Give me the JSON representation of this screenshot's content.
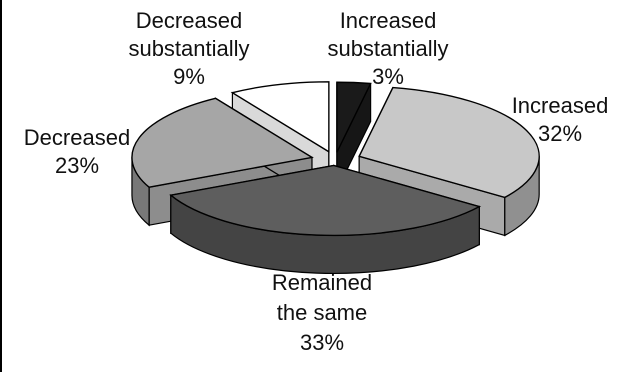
{
  "chart_data": {
    "type": "pie",
    "title": "",
    "style": "3d-exploded",
    "slices": [
      {
        "label_lines": [
          "Increased",
          "substantially"
        ],
        "value": 3,
        "value_label": "3%",
        "color": "#1a1a1a"
      },
      {
        "label_lines": [
          "Increased"
        ],
        "value": 32,
        "value_label": "32%",
        "color": "#c8c8c8"
      },
      {
        "label_lines": [
          "Remained",
          "the same"
        ],
        "value": 33,
        "value_label": "33%",
        "color": "#5e5e5e"
      },
      {
        "label_lines": [
          "Decreased"
        ],
        "value": 23,
        "value_label": "23%",
        "color": "#a6a6a6"
      },
      {
        "label_lines": [
          "Decreased",
          "substantially"
        ],
        "value": 9,
        "value_label": "9%",
        "color": "#ffffff"
      }
    ],
    "legend": "none"
  }
}
